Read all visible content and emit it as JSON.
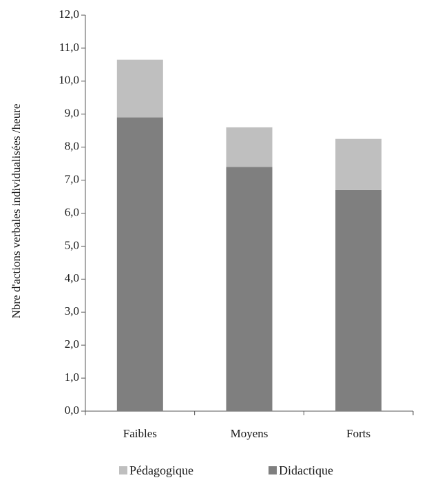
{
  "chart_data": {
    "type": "bar",
    "stacked": true,
    "categories": [
      "Faibles",
      "Moyens",
      "Forts"
    ],
    "series": [
      {
        "name": "Didactique",
        "values": [
          8.9,
          7.4,
          6.7
        ],
        "color": "#7f7f7f"
      },
      {
        "name": "Pédagogique",
        "values": [
          1.75,
          1.2,
          1.55
        ],
        "color": "#bfbfbf"
      }
    ],
    "ylabel": "Nbre d'actions verbales individualisées /heure",
    "ylim": [
      0,
      12
    ],
    "yticks": [
      "0,0",
      "1,0",
      "2,0",
      "3,0",
      "4,0",
      "5,0",
      "6,0",
      "7,0",
      "8,0",
      "9,0",
      "10,0",
      "11,0",
      "12,0"
    ],
    "grid": false,
    "legend": {
      "position": "bottom",
      "entries": [
        {
          "name": "Pédagogique",
          "color": "#bfbfbf"
        },
        {
          "name": "Didactique",
          "color": "#7f7f7f"
        }
      ]
    }
  }
}
